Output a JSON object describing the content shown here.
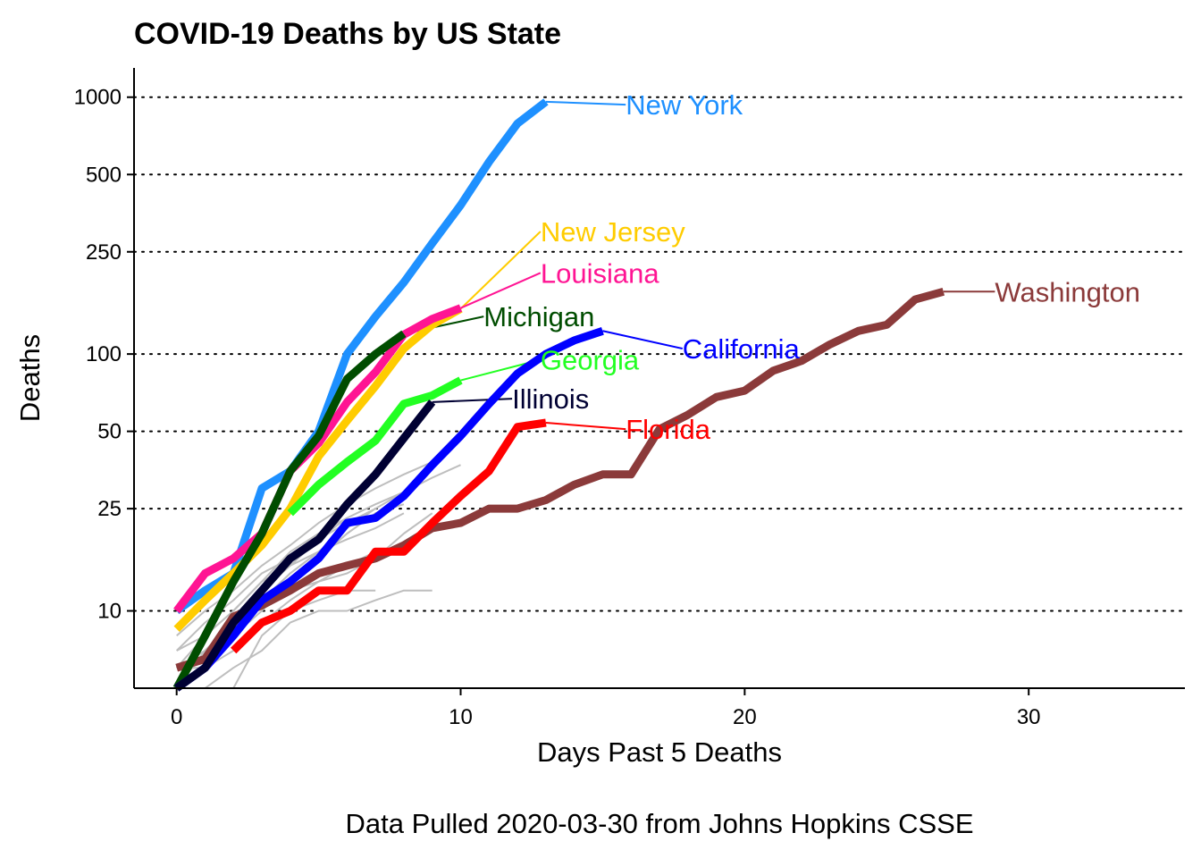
{
  "chart_data": {
    "type": "line",
    "title": "COVID-19 Deaths by US State",
    "xlabel": "Days Past 5 Deaths",
    "ylabel": "Deaths",
    "caption": "Data Pulled 2020-03-30 from Johns Hopkins CSSE",
    "y_scale": "log",
    "xlim": [
      -1.5,
      35.5
    ],
    "ylim": [
      5,
      1300
    ],
    "x_ticks": [
      0,
      10,
      20,
      30
    ],
    "y_ticks": [
      10,
      25,
      50,
      100,
      250,
      500,
      1000
    ],
    "y_gridlines": "dotted",
    "x_gridlines": false,
    "background_series_color": "#bebebe",
    "background_series": [
      {
        "x": [
          0,
          1,
          2,
          3,
          4,
          5,
          6,
          7
        ],
        "values": [
          5,
          5,
          5,
          8,
          10,
          11,
          12,
          12
        ]
      },
      {
        "x": [
          0,
          1,
          2,
          3,
          4,
          5,
          6,
          7,
          8
        ],
        "values": [
          6,
          6,
          8,
          10,
          13,
          16,
          20,
          24,
          26
        ]
      },
      {
        "x": [
          0,
          1,
          2,
          3,
          4,
          5,
          6,
          7,
          8,
          9,
          10
        ],
        "values": [
          7,
          8,
          10,
          13,
          17,
          20,
          23,
          26,
          29,
          33,
          37
        ]
      },
      {
        "x": [
          0,
          1,
          2,
          3,
          4,
          5,
          6
        ],
        "values": [
          6,
          7,
          9,
          12,
          15,
          19,
          23
        ]
      },
      {
        "x": [
          0,
          1,
          2,
          3,
          4,
          5,
          6,
          7,
          8
        ],
        "values": [
          5,
          6,
          8,
          11,
          14,
          17,
          21,
          25,
          29
        ]
      },
      {
        "x": [
          0,
          1,
          2,
          3,
          4,
          5,
          6,
          7,
          8,
          9
        ],
        "values": [
          8,
          10,
          12,
          15,
          18,
          22,
          26,
          30,
          34,
          38
        ]
      },
      {
        "x": [
          0,
          1,
          2,
          3,
          4,
          5
        ],
        "values": [
          5,
          7,
          9,
          11,
          14,
          17
        ]
      },
      {
        "x": [
          0,
          1,
          2,
          3,
          4,
          5,
          6,
          7
        ],
        "values": [
          7,
          9,
          11,
          14,
          16,
          19,
          22,
          25
        ]
      },
      {
        "x": [
          0,
          1,
          2,
          3,
          4,
          5,
          6,
          7,
          8
        ],
        "values": [
          6,
          8,
          10,
          13,
          15,
          17,
          19,
          21,
          24
        ]
      },
      {
        "x": [
          0,
          1,
          2,
          3,
          4,
          5,
          6,
          7
        ],
        "values": [
          5,
          6,
          7,
          9,
          11,
          13,
          15,
          17
        ]
      },
      {
        "x": [
          0,
          1,
          2,
          3,
          4,
          5,
          6,
          7,
          8,
          9
        ],
        "values": [
          6,
          7,
          9,
          11,
          12,
          13,
          14,
          16,
          20,
          24
        ]
      },
      {
        "x": [
          0,
          1,
          2,
          3,
          4,
          5,
          6,
          7,
          8,
          9
        ],
        "values": [
          5,
          5,
          6,
          7,
          9,
          10,
          10,
          11,
          12,
          12
        ]
      }
    ],
    "series": [
      {
        "name": "Washington",
        "color": "#8b3a3a",
        "x": [
          0,
          1,
          2,
          3,
          4,
          5,
          6,
          7,
          8,
          9,
          10,
          11,
          12,
          13,
          14,
          15,
          16,
          17,
          18,
          19,
          20,
          21,
          22,
          23,
          24,
          25,
          26,
          27
        ],
        "values": [
          6,
          6.5,
          9.5,
          10.5,
          12,
          14,
          15,
          16,
          18,
          21,
          22,
          25,
          25,
          27,
          31,
          34,
          34,
          51,
          58,
          68,
          72,
          86,
          94,
          109,
          123,
          130,
          163,
          175
        ],
        "label": {
          "x": 29,
          "y": 175,
          "anchor_x": 27,
          "anchor_y": 175
        }
      },
      {
        "name": "New York",
        "color": "#1e90ff",
        "x": [
          0,
          1,
          2,
          3,
          4,
          5,
          6,
          7,
          8,
          9,
          10,
          11,
          12,
          13
        ],
        "values": [
          10,
          12,
          14,
          30,
          35,
          50,
          100,
          140,
          190,
          270,
          380,
          560,
          790,
          960
        ],
        "label": {
          "x": 16,
          "y": 935,
          "anchor_x": 13,
          "anchor_y": 960
        }
      },
      {
        "name": "New Jersey",
        "color": "#ffcc00",
        "x": [
          0,
          1,
          2,
          3,
          4,
          5,
          6,
          7,
          8,
          9,
          10
        ],
        "values": [
          8.5,
          11,
          14,
          18,
          25,
          40,
          55,
          75,
          105,
          130,
          150
        ],
        "label": {
          "x": 13,
          "y": 300,
          "anchor_x": 10,
          "anchor_y": 150
        }
      },
      {
        "name": "Louisiana",
        "color": "#ff1493",
        "x": [
          0,
          1,
          2,
          3,
          4,
          5,
          6,
          7,
          8,
          9,
          10
        ],
        "values": [
          10,
          14,
          16,
          20,
          35,
          45,
          65,
          85,
          119,
          137,
          151
        ],
        "label": {
          "x": 13,
          "y": 207,
          "anchor_x": 10,
          "anchor_y": 151
        }
      },
      {
        "name": "Michigan",
        "color": "#004d00",
        "x": [
          0,
          1,
          2,
          3,
          4,
          5,
          6,
          7,
          8
        ],
        "values": [
          5,
          8,
          13,
          20,
          35,
          48,
          80,
          100,
          120
        ],
        "label": {
          "x": 11,
          "y": 140,
          "anchor_x": 8,
          "anchor_y": 120
        }
      },
      {
        "name": "California",
        "color": "#0000ff",
        "x": [
          0,
          1,
          2,
          3,
          4,
          5,
          6,
          7,
          8,
          9,
          10,
          11,
          12,
          13,
          14,
          15
        ],
        "values": [
          5,
          6,
          8,
          11,
          13,
          16,
          22,
          23,
          28,
          37,
          48,
          64,
          84,
          100,
          113,
          123
        ],
        "label": {
          "x": 18,
          "y": 105,
          "anchor_x": 15,
          "anchor_y": 123
        }
      },
      {
        "name": "Georgia",
        "color": "#22ff22",
        "x": [
          0,
          1,
          2,
          3,
          4,
          5,
          6,
          7,
          8,
          9,
          10
        ],
        "values": [
          null,
          null,
          null,
          null,
          24,
          31,
          38,
          46,
          64,
          69,
          79
        ],
        "label": {
          "x": 13,
          "y": 95,
          "anchor_x": 10,
          "anchor_y": 79
        }
      },
      {
        "name": "Illinois",
        "color": "#000033",
        "x": [
          0,
          1,
          2,
          3,
          4,
          5,
          6,
          7,
          8,
          9
        ],
        "values": [
          5,
          6,
          9,
          12,
          16,
          19,
          26,
          34,
          47,
          65
        ],
        "label": {
          "x": 12,
          "y": 67,
          "anchor_x": 9,
          "anchor_y": 65
        }
      },
      {
        "name": "Florida",
        "color": "#ff0000",
        "x": [
          0,
          1,
          2,
          3,
          4,
          5,
          6,
          7,
          8,
          9,
          10,
          11,
          12,
          13
        ],
        "values": [
          null,
          null,
          7,
          9,
          10,
          12,
          12,
          17,
          17,
          22,
          28,
          35,
          52,
          54
        ],
        "label": {
          "x": 16,
          "y": 51,
          "anchor_x": 13,
          "anchor_y": 54
        }
      }
    ]
  }
}
